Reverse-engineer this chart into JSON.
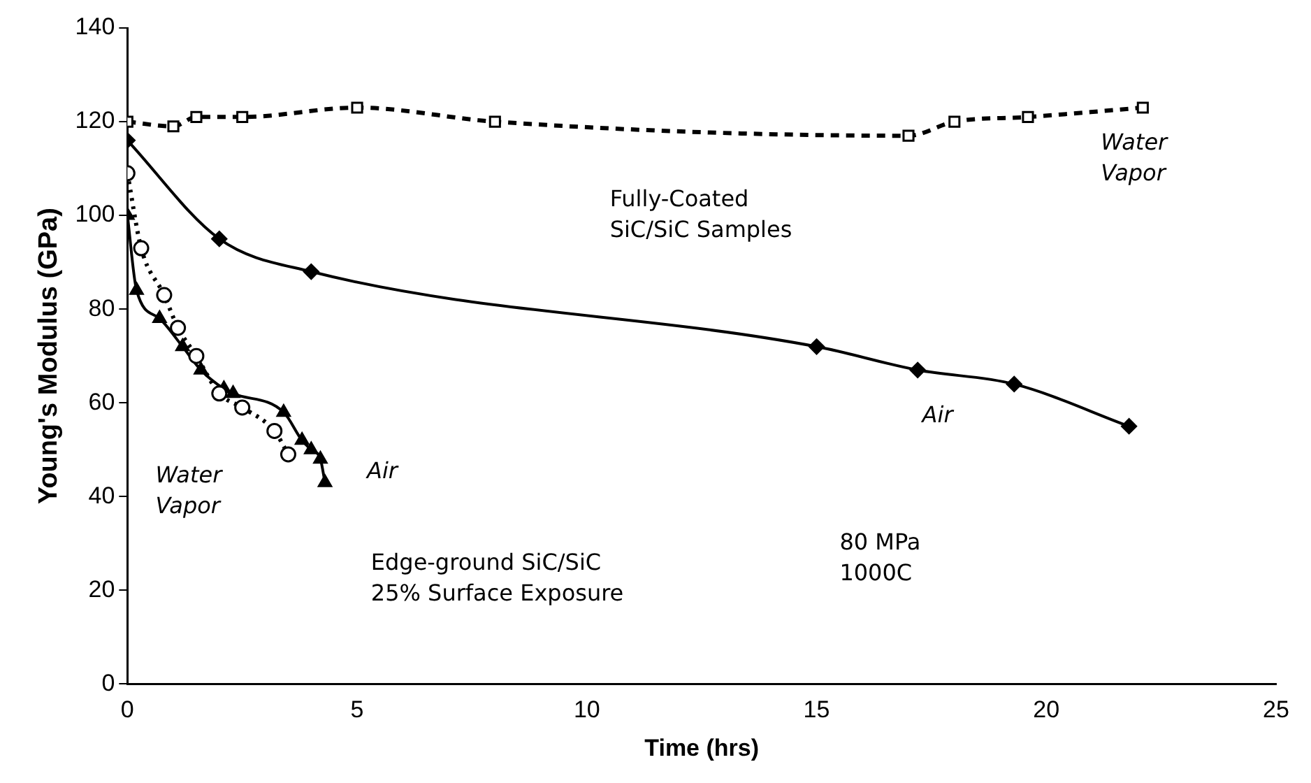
{
  "chart_data": {
    "type": "line",
    "xlabel": "Time (hrs)",
    "ylabel": "Young's Modulus (GPa)",
    "xlim": [
      0,
      25
    ],
    "xticks": [
      0,
      5,
      10,
      15,
      20,
      25
    ],
    "ylim": [
      0,
      140
    ],
    "yticks": [
      0,
      20,
      40,
      60,
      80,
      100,
      120,
      140
    ],
    "grid": false,
    "legend": false,
    "series": [
      {
        "name": "Water\nVapor",
        "color": "#000000",
        "marker": "square",
        "line_style": "dashed",
        "x": [
          0,
          1,
          1.5,
          2.5,
          5,
          8,
          17,
          18,
          19.6,
          22.1
        ],
        "values": [
          120,
          119,
          121,
          121,
          123,
          120,
          117,
          120,
          121,
          123
        ]
      },
      {
        "name": "Air",
        "color": "#000000",
        "marker": "diamond",
        "line_style": "solid",
        "x": [
          0,
          2,
          4,
          15,
          17.2,
          19.3,
          21.8
        ],
        "values": [
          116,
          95,
          88,
          72,
          67,
          64,
          55
        ]
      },
      {
        "name": "Water\nVapor",
        "color": "#000000",
        "marker": "circle",
        "line_style": "dotted",
        "x": [
          0,
          0.3,
          0.8,
          1.1,
          1.5,
          2,
          2.5,
          3.2,
          3.5
        ],
        "values": [
          109,
          93,
          83,
          76,
          70,
          62,
          59,
          54,
          49
        ]
      },
      {
        "name": "Air",
        "color": "#000000",
        "marker": "triangle",
        "line_style": "solid",
        "x": [
          0,
          0.2,
          0.7,
          1.2,
          1.6,
          2.1,
          2.3,
          3.4,
          3.8,
          4,
          4.2,
          4.3
        ],
        "values": [
          100,
          84,
          78,
          72,
          67,
          63,
          62,
          58,
          52,
          50,
          48,
          43
        ]
      }
    ],
    "annotations": [
      "Fully-Coated\nSiC/SiC Samples",
      "Edge-ground SiC/SiC\n25% Surface Exposure",
      "80 MPa\n1000C"
    ]
  }
}
